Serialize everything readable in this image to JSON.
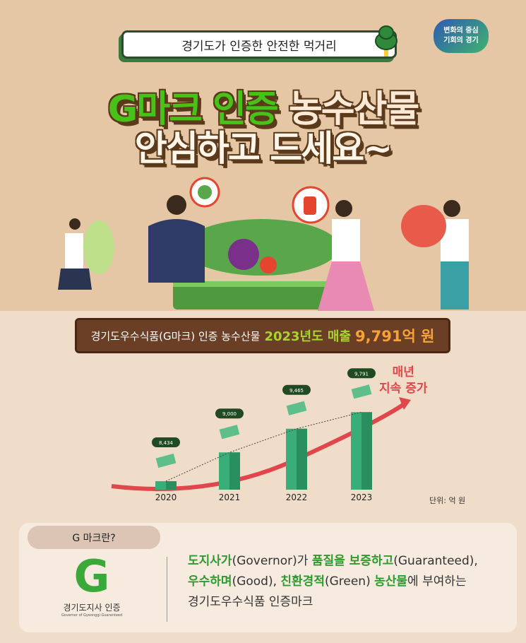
{
  "header": {
    "tagline": "경기도가 인증한 안전한 먹거리",
    "logo_line1": "변화의 중심",
    "logo_line2": "기회의 경기"
  },
  "title": {
    "green": "G마크 인증",
    "cream": "농수산물",
    "line2": "안심하고 드세요~"
  },
  "banner": {
    "prefix": "경기도우수식품(G마크) 인증 농수산물",
    "highlight": "2023년도 매출",
    "amount": "9,791억 원",
    "colors": {
      "highlight": "#a8d42f",
      "amount": "#f5a23a"
    }
  },
  "chart_data": {
    "type": "bar",
    "categories": [
      "2020",
      "2021",
      "2022",
      "2023"
    ],
    "values": [
      8434,
      9000,
      9465,
      9791
    ],
    "value_labels": [
      "8,434",
      "9,000",
      "9,465",
      "9,791"
    ],
    "unit_label": "단위: 억 원",
    "annotation": [
      "매년",
      "지속 증가"
    ],
    "bar_color": "#3aae78",
    "trend_color": "#e0474c"
  },
  "gmark": {
    "question": "G 마크란?",
    "logo_letter": "G",
    "logo_caption": "경기도지사 인증",
    "logo_subcaption": "Governor of Gyeonggi Guaranteed",
    "desc": [
      [
        "도지사가",
        "(Governor)가 ",
        "품질을 보증하고",
        "(Guaranteed),"
      ],
      [
        "우수하며",
        "(Good), ",
        "친환경적",
        "(Green) ",
        "농산물",
        "에 부여하는"
      ],
      [
        "경기도우수식품 인증마크"
      ]
    ]
  }
}
